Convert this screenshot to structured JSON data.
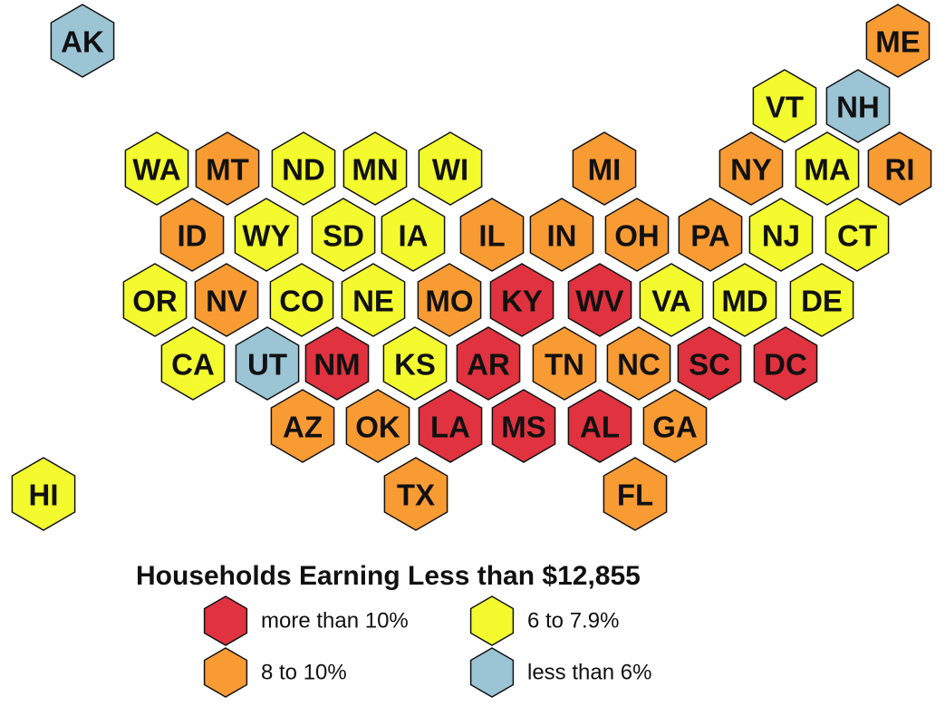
{
  "legend": {
    "title": "Households Earning Less than $12,855",
    "items": [
      {
        "key": "red",
        "label": "more than 10%",
        "color": "#e0323f"
      },
      {
        "key": "orange",
        "label": "8 to 10%",
        "color": "#f99b33"
      },
      {
        "key": "yellow",
        "label": "6 to 7.9%",
        "color": "#f3fb2e"
      },
      {
        "key": "blue",
        "label": "less than 6%",
        "color": "#9bc4d5"
      }
    ]
  },
  "states": [
    {
      "abbr": "AK",
      "category": "blue"
    },
    {
      "abbr": "ME",
      "category": "orange"
    },
    {
      "abbr": "VT",
      "category": "yellow"
    },
    {
      "abbr": "NH",
      "category": "blue"
    },
    {
      "abbr": "WA",
      "category": "yellow"
    },
    {
      "abbr": "MT",
      "category": "orange"
    },
    {
      "abbr": "ND",
      "category": "yellow"
    },
    {
      "abbr": "MN",
      "category": "yellow"
    },
    {
      "abbr": "WI",
      "category": "yellow"
    },
    {
      "abbr": "MI",
      "category": "orange"
    },
    {
      "abbr": "NY",
      "category": "orange"
    },
    {
      "abbr": "MA",
      "category": "yellow"
    },
    {
      "abbr": "RI",
      "category": "orange"
    },
    {
      "abbr": "ID",
      "category": "orange"
    },
    {
      "abbr": "WY",
      "category": "yellow"
    },
    {
      "abbr": "SD",
      "category": "yellow"
    },
    {
      "abbr": "IA",
      "category": "yellow"
    },
    {
      "abbr": "IL",
      "category": "orange"
    },
    {
      "abbr": "IN",
      "category": "orange"
    },
    {
      "abbr": "OH",
      "category": "orange"
    },
    {
      "abbr": "PA",
      "category": "orange"
    },
    {
      "abbr": "NJ",
      "category": "yellow"
    },
    {
      "abbr": "CT",
      "category": "yellow"
    },
    {
      "abbr": "OR",
      "category": "yellow"
    },
    {
      "abbr": "NV",
      "category": "orange"
    },
    {
      "abbr": "CO",
      "category": "yellow"
    },
    {
      "abbr": "NE",
      "category": "yellow"
    },
    {
      "abbr": "MO",
      "category": "orange"
    },
    {
      "abbr": "KY",
      "category": "red"
    },
    {
      "abbr": "WV",
      "category": "red"
    },
    {
      "abbr": "VA",
      "category": "yellow"
    },
    {
      "abbr": "MD",
      "category": "yellow"
    },
    {
      "abbr": "DE",
      "category": "yellow"
    },
    {
      "abbr": "CA",
      "category": "yellow"
    },
    {
      "abbr": "UT",
      "category": "blue"
    },
    {
      "abbr": "NM",
      "category": "red"
    },
    {
      "abbr": "KS",
      "category": "yellow"
    },
    {
      "abbr": "AR",
      "category": "red"
    },
    {
      "abbr": "TN",
      "category": "orange"
    },
    {
      "abbr": "NC",
      "category": "orange"
    },
    {
      "abbr": "SC",
      "category": "red"
    },
    {
      "abbr": "DC",
      "category": "red"
    },
    {
      "abbr": "AZ",
      "category": "orange"
    },
    {
      "abbr": "OK",
      "category": "orange"
    },
    {
      "abbr": "LA",
      "category": "red"
    },
    {
      "abbr": "MS",
      "category": "red"
    },
    {
      "abbr": "AL",
      "category": "red"
    },
    {
      "abbr": "GA",
      "category": "orange"
    },
    {
      "abbr": "HI",
      "category": "yellow"
    },
    {
      "abbr": "TX",
      "category": "orange"
    },
    {
      "abbr": "FL",
      "category": "orange"
    }
  ]
}
